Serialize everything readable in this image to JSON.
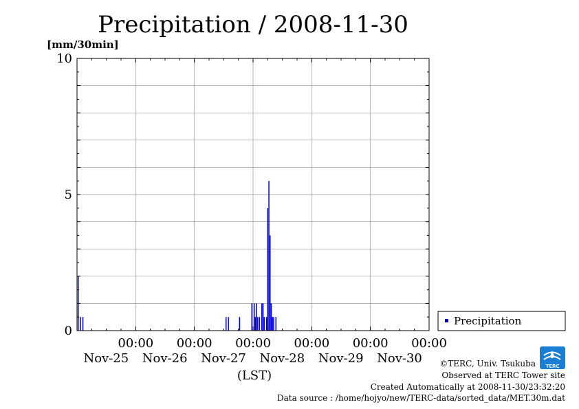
{
  "chart_data": {
    "type": "bar",
    "title": "Precipitation / 2008-11-30",
    "ylabel": "[mm/30min]",
    "xlabel": "(LST)",
    "ylim": [
      0,
      10
    ],
    "y_ticks": [
      "0",
      "5",
      "10"
    ],
    "x_range_days": [
      0,
      6
    ],
    "x_ticks": [
      {
        "day": 1,
        "time": "00:00",
        "date": "Nov-25"
      },
      {
        "day": 2,
        "time": "00:00",
        "date": "Nov-26"
      },
      {
        "day": 3,
        "time": "00:00",
        "date": "Nov-27"
      },
      {
        "day": 4,
        "time": "00:00",
        "date": "Nov-28"
      },
      {
        "day": 5,
        "time": "00:00",
        "date": "Nov-29"
      },
      {
        "day": 6,
        "time": "00:00",
        "date": "Nov-30"
      }
    ],
    "grid": true,
    "legend_position": "right",
    "series": [
      {
        "name": "Precipitation",
        "color": "#0000cc",
        "points": [
          {
            "day": 0.02,
            "value": 2.0
          },
          {
            "day": 0.06,
            "value": 0.5
          },
          {
            "day": 0.1,
            "value": 0.5
          },
          {
            "day": 2.54,
            "value": 0.5
          },
          {
            "day": 2.58,
            "value": 0.5
          },
          {
            "day": 2.77,
            "value": 0.5
          },
          {
            "day": 2.98,
            "value": 1.0
          },
          {
            "day": 3.02,
            "value": 1.0
          },
          {
            "day": 3.04,
            "value": 0.5
          },
          {
            "day": 3.06,
            "value": 1.0
          },
          {
            "day": 3.08,
            "value": 0.5
          },
          {
            "day": 3.11,
            "value": 0.5
          },
          {
            "day": 3.15,
            "value": 1.0
          },
          {
            "day": 3.17,
            "value": 1.0
          },
          {
            "day": 3.19,
            "value": 0.5
          },
          {
            "day": 3.23,
            "value": 0.5
          },
          {
            "day": 3.25,
            "value": 4.5
          },
          {
            "day": 3.27,
            "value": 5.5
          },
          {
            "day": 3.29,
            "value": 3.5
          },
          {
            "day": 3.31,
            "value": 1.0
          },
          {
            "day": 3.33,
            "value": 0.5
          },
          {
            "day": 3.35,
            "value": 0.5
          },
          {
            "day": 3.39,
            "value": 0.5
          }
        ]
      }
    ]
  },
  "credits": {
    "copyright": "©TERC, Univ. Tsukuba",
    "observed": "Observed at TERC Tower site",
    "created": "Created Automatically at 2008-11-30/23:32:20",
    "source": "Data source : /home/hojyo/new/TERC-data/sorted_data/MET.30m.dat"
  },
  "logo": {
    "text": "TERC",
    "color": "#1a7fd4"
  }
}
